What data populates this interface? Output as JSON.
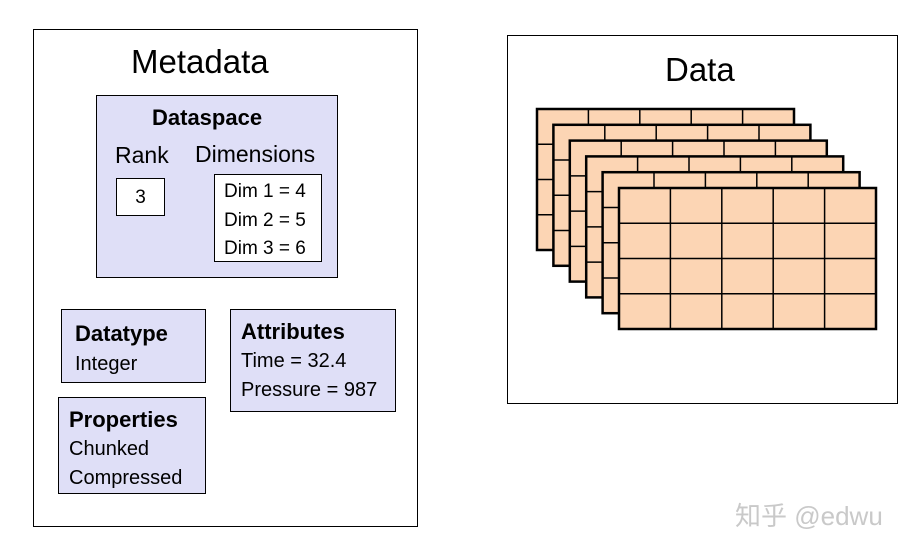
{
  "metadata": {
    "title": "Metadata",
    "dataspace": {
      "heading": "Dataspace",
      "rank_label": "Rank",
      "rank_value": "3",
      "dimensions_label": "Dimensions",
      "dimensions": [
        "Dim 1 = 4",
        "Dim 2 = 5",
        "Dim 3 = 6"
      ]
    },
    "datatype": {
      "heading": "Datatype",
      "value": "Integer"
    },
    "properties": {
      "heading": "Properties",
      "values": [
        "Chunked",
        "Compressed"
      ]
    },
    "attributes": {
      "heading": "Attributes",
      "values": [
        "Time = 32.4",
        "Pressure = 987"
      ]
    }
  },
  "data": {
    "title": "Data",
    "grid_layers": 6,
    "grid_rows": 4,
    "grid_columns": 5,
    "cell_color": "#fcd5b4"
  },
  "watermark": "知乎 @edwu"
}
